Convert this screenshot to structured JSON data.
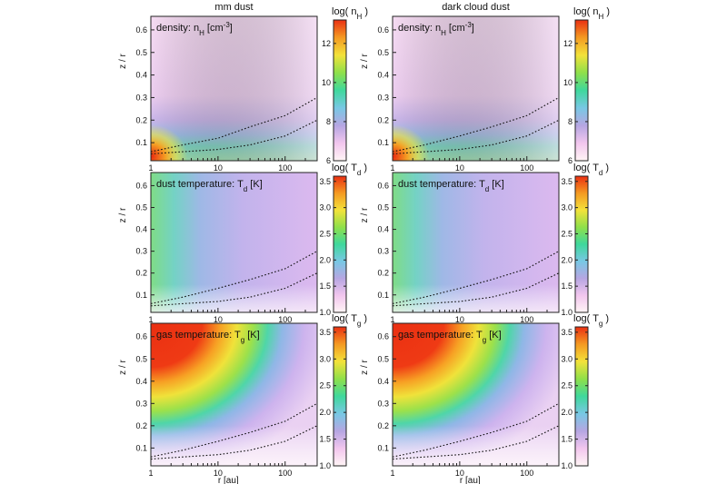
{
  "columns": [
    {
      "key": "mm",
      "title": "mm dust"
    },
    {
      "key": "dc",
      "title": "dark cloud dust"
    }
  ],
  "rows": [
    {
      "key": "density",
      "label_main": "density: n",
      "label_sub": "H",
      "label_tail": " [cm",
      "label_sup": "-3",
      "label_end": "]",
      "cb_label": "log( n",
      "cb_sub": "H",
      "cb_end": " )",
      "cb_ticks": [
        "6",
        "8",
        "10",
        "12"
      ],
      "cb_range": [
        6,
        13.2
      ]
    },
    {
      "key": "dust_temp",
      "label_main": "dust temperature: T",
      "label_sub": "d",
      "label_tail": " [K]",
      "label_sup": "",
      "label_end": "",
      "cb_label": "log( T",
      "cb_sub": "d",
      "cb_end": " )",
      "cb_ticks": [
        "1.0",
        "1.5",
        "2.0",
        "2.5",
        "3.0",
        "3.5"
      ],
      "cb_range": [
        1.0,
        3.6
      ]
    },
    {
      "key": "gas_temp",
      "label_main": "gas temperature: T",
      "label_sub": "g",
      "label_tail": " [K]",
      "label_sup": "",
      "label_end": "",
      "cb_label": "log( T",
      "cb_sub": "g",
      "cb_end": " )",
      "cb_ticks": [
        "1.0",
        "1.5",
        "2.0",
        "2.5",
        "3.0",
        "3.5"
      ],
      "cb_range": [
        1.0,
        3.6
      ]
    }
  ],
  "axes": {
    "xlabel": "r [au]",
    "ylabel": "z / r",
    "x_ticks": [
      "1",
      "10",
      "100"
    ],
    "y_ticks": [
      "0.1",
      "0.2",
      "0.3",
      "0.4",
      "0.5",
      "0.6"
    ]
  },
  "chart_data": {
    "type": "heatmap",
    "x_scale": "log",
    "xlim": [
      1,
      300
    ],
    "ylim": [
      0.02,
      0.66
    ],
    "xlabel": "r [au]",
    "ylabel": "z / r",
    "colormap": [
      "#fff5f5",
      "#f2c6ee",
      "#b6a6e2",
      "#78c8e4",
      "#3fd89c",
      "#8fe04a",
      "#f3e23a",
      "#f49a22",
      "#ea2f12"
    ],
    "panels": [
      {
        "row": "density",
        "column": "mm dust",
        "contours": [
          {
            "r": [
              1,
              3,
              10,
              30,
              100,
              300
            ],
            "z_over_r": [
              0.06,
              0.09,
              0.12,
              0.17,
              0.22,
              0.3
            ]
          },
          {
            "r": [
              1,
              3,
              10,
              30,
              100,
              300
            ],
            "z_over_r": [
              0.05,
              0.06,
              0.07,
              0.09,
              0.13,
              0.2
            ]
          }
        ]
      },
      {
        "row": "density",
        "column": "dark cloud dust",
        "contours": [
          {
            "r": [
              1,
              3,
              10,
              30,
              100,
              300
            ],
            "z_over_r": [
              0.06,
              0.09,
              0.13,
              0.17,
              0.22,
              0.3
            ]
          },
          {
            "r": [
              1,
              3,
              10,
              30,
              100,
              300
            ],
            "z_over_r": [
              0.05,
              0.06,
              0.07,
              0.09,
              0.13,
              0.2
            ]
          }
        ]
      },
      {
        "row": "dust_temp",
        "column": "mm dust",
        "contours": [
          {
            "r": [
              1,
              3,
              10,
              30,
              100,
              300
            ],
            "z_over_r": [
              0.06,
              0.09,
              0.13,
              0.17,
              0.22,
              0.3
            ]
          },
          {
            "r": [
              1,
              3,
              10,
              30,
              100,
              300
            ],
            "z_over_r": [
              0.05,
              0.06,
              0.07,
              0.09,
              0.13,
              0.2
            ]
          }
        ]
      },
      {
        "row": "dust_temp",
        "column": "dark cloud dust",
        "contours": [
          {
            "r": [
              1,
              3,
              10,
              30,
              100,
              300
            ],
            "z_over_r": [
              0.06,
              0.09,
              0.13,
              0.17,
              0.22,
              0.3
            ]
          },
          {
            "r": [
              1,
              3,
              10,
              30,
              100,
              300
            ],
            "z_over_r": [
              0.05,
              0.06,
              0.07,
              0.09,
              0.13,
              0.2
            ]
          }
        ]
      },
      {
        "row": "gas_temp",
        "column": "mm dust",
        "contours": [
          {
            "r": [
              1,
              3,
              10,
              30,
              100,
              300
            ],
            "z_over_r": [
              0.06,
              0.09,
              0.13,
              0.17,
              0.22,
              0.3
            ]
          },
          {
            "r": [
              1,
              3,
              10,
              30,
              100,
              300
            ],
            "z_over_r": [
              0.05,
              0.06,
              0.07,
              0.09,
              0.13,
              0.2
            ]
          }
        ]
      },
      {
        "row": "gas_temp",
        "column": "dark cloud dust",
        "contours": [
          {
            "r": [
              1,
              3,
              10,
              30,
              100,
              300
            ],
            "z_over_r": [
              0.06,
              0.09,
              0.13,
              0.17,
              0.22,
              0.3
            ]
          },
          {
            "r": [
              1,
              3,
              10,
              30,
              100,
              300
            ],
            "z_over_r": [
              0.05,
              0.06,
              0.07,
              0.09,
              0.13,
              0.2
            ]
          }
        ]
      }
    ]
  }
}
